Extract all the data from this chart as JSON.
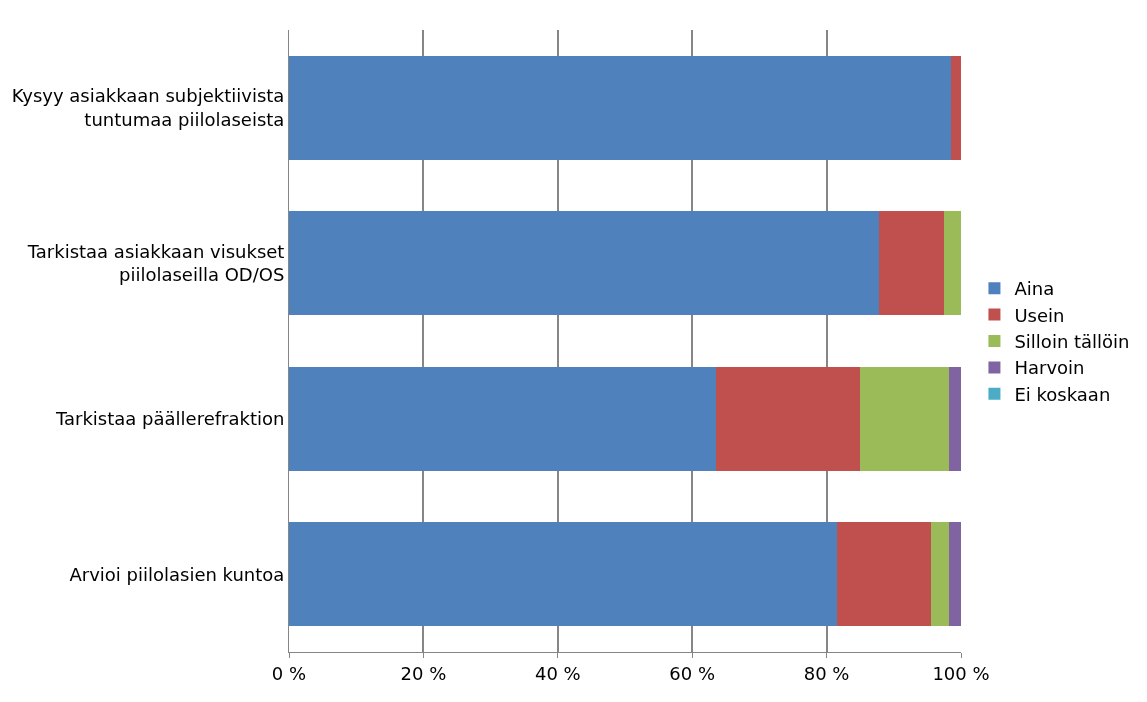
{
  "chart_data": {
    "type": "bar",
    "orientation": "horizontal",
    "stacked": true,
    "categories": [
      "Kysyy asiakkaan subjektiivista tuntumaa piilolaseista",
      "Tarkistaa asiakkaan visukset piilolaseilla OD/OS",
      "Tarkistaa päällerefraktion",
      "Arvioi piilolasien kuntoa"
    ],
    "series": [
      {
        "name": "Aina",
        "color": "#4f81bd",
        "values": [
          98.5,
          87.8,
          63.6,
          81.5
        ]
      },
      {
        "name": "Usein",
        "color": "#c0504d",
        "values": [
          1.5,
          9.7,
          21.4,
          14.1
        ]
      },
      {
        "name": "Silloin tällöin",
        "color": "#9bbb59",
        "values": [
          0,
          2.5,
          13.2,
          2.6
        ]
      },
      {
        "name": "Harvoin",
        "color": "#8064a2",
        "values": [
          0,
          0,
          1.8,
          1.8
        ]
      },
      {
        "name": "Ei koskaan",
        "color": "#4bacc6",
        "values": [
          0,
          0,
          0,
          0
        ]
      }
    ],
    "xlim": [
      0,
      100
    ],
    "xticks": [
      {
        "value": 0,
        "label": "0 %"
      },
      {
        "value": 20,
        "label": "20 %"
      },
      {
        "value": 40,
        "label": "40 %"
      },
      {
        "value": 60,
        "label": "60 %"
      },
      {
        "value": 80,
        "label": "80 %"
      },
      {
        "value": 100,
        "label": "100 %"
      }
    ],
    "grid": "x",
    "legend": "right"
  }
}
